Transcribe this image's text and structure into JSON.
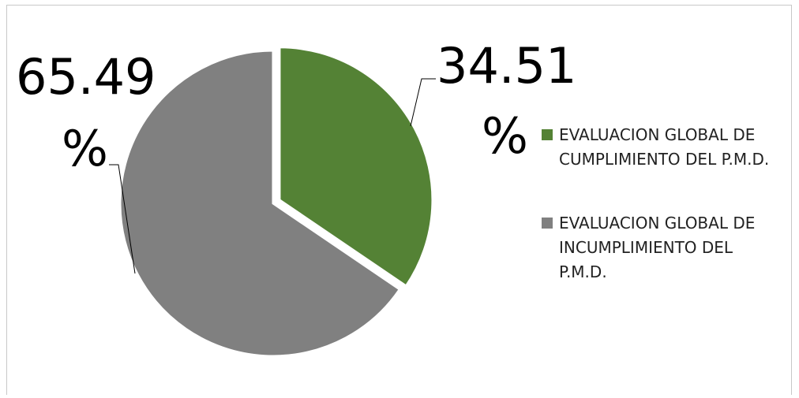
{
  "chart_data": {
    "type": "pie",
    "series": [
      {
        "values": [
          34.51,
          65.49
        ],
        "labels": [
          "EVALUACION GLOBAL DE CUMPLIMIENTO DEL P.M.D.",
          "EVALUACION GLOBAL DE INCUMPLIMIENTO DEL P.M.D."
        ]
      }
    ],
    "slices": [
      {
        "label": "EVALUACION GLOBAL DE CUMPLIMIENTO DEL P.M.D.",
        "legend_lines": [
          "EVALUACION GLOBAL DE",
          "CUMPLIMIENTO DEL P.M.D."
        ],
        "value": 34.51,
        "data_label_lines": [
          "34.51",
          "%"
        ],
        "color": "#548235",
        "exploded": true
      },
      {
        "label": "EVALUACION GLOBAL DE INCUMPLIMIENTO DEL P.M.D.",
        "legend_lines": [
          "EVALUACION GLOBAL DE",
          "INCUMPLIMIENTO DEL",
          "P.M.D."
        ],
        "value": 65.49,
        "data_label_lines": [
          "65.49",
          "%"
        ],
        "color": "#808080",
        "exploded": false
      }
    ],
    "title": "",
    "legend_position": "right",
    "start_angle": "top",
    "direction": "clockwise"
  }
}
